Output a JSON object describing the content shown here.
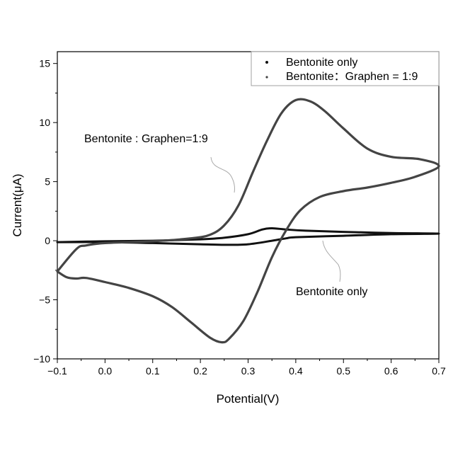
{
  "chart_data": {
    "type": "line",
    "title": "",
    "xlabel": "Potential(V)",
    "ylabel": "Current(μA)",
    "xlim": [
      -0.1,
      0.7
    ],
    "ylim": [
      -10,
      16
    ],
    "xticks": [
      "−0.1",
      "0.0",
      "0.1",
      "0.2",
      "0.3",
      "0.4",
      "0.5",
      "0.6",
      "0.7"
    ],
    "yticks": [
      "−10",
      "−5",
      "0",
      "5",
      "10",
      "15"
    ],
    "grid": false,
    "legend_position": "top-right",
    "series": [
      {
        "name": "Bentonite only",
        "color": "#111111",
        "points": [
          [
            -0.1,
            -0.12
          ],
          [
            0.0,
            -0.05
          ],
          [
            0.1,
            0.0
          ],
          [
            0.2,
            0.12
          ],
          [
            0.25,
            0.25
          ],
          [
            0.3,
            0.55
          ],
          [
            0.33,
            0.95
          ],
          [
            0.35,
            1.05
          ],
          [
            0.38,
            0.95
          ],
          [
            0.42,
            0.85
          ],
          [
            0.5,
            0.75
          ],
          [
            0.6,
            0.65
          ],
          [
            0.7,
            0.6
          ],
          [
            0.6,
            0.55
          ],
          [
            0.5,
            0.42
          ],
          [
            0.4,
            0.3
          ],
          [
            0.38,
            0.2
          ],
          [
            0.35,
            0.0
          ],
          [
            0.3,
            -0.3
          ],
          [
            0.25,
            -0.35
          ],
          [
            0.2,
            -0.3
          ],
          [
            0.1,
            -0.2
          ],
          [
            0.0,
            -0.12
          ],
          [
            -0.1,
            -0.12
          ]
        ]
      },
      {
        "name": "Bentonite : Graphen = 1:9",
        "color": "#444444",
        "points": [
          [
            -0.1,
            -2.6
          ],
          [
            -0.06,
            -0.7
          ],
          [
            -0.04,
            -0.4
          ],
          [
            0.0,
            -0.2
          ],
          [
            0.1,
            -0.05
          ],
          [
            0.18,
            0.2
          ],
          [
            0.22,
            0.5
          ],
          [
            0.25,
            1.3
          ],
          [
            0.28,
            3.0
          ],
          [
            0.31,
            5.8
          ],
          [
            0.34,
            8.5
          ],
          [
            0.37,
            10.8
          ],
          [
            0.4,
            11.9
          ],
          [
            0.43,
            11.8
          ],
          [
            0.46,
            11.0
          ],
          [
            0.5,
            9.5
          ],
          [
            0.55,
            7.8
          ],
          [
            0.6,
            7.1
          ],
          [
            0.66,
            6.9
          ],
          [
            0.7,
            6.3
          ],
          [
            0.65,
            5.4
          ],
          [
            0.6,
            4.9
          ],
          [
            0.55,
            4.5
          ],
          [
            0.5,
            4.2
          ],
          [
            0.45,
            3.7
          ],
          [
            0.41,
            2.6
          ],
          [
            0.38,
            0.9
          ],
          [
            0.35,
            -1.4
          ],
          [
            0.32,
            -4.3
          ],
          [
            0.29,
            -6.8
          ],
          [
            0.26,
            -8.3
          ],
          [
            0.245,
            -8.6
          ],
          [
            0.22,
            -8.2
          ],
          [
            0.18,
            -6.9
          ],
          [
            0.14,
            -5.6
          ],
          [
            0.1,
            -4.7
          ],
          [
            0.05,
            -4.0
          ],
          [
            0.0,
            -3.5
          ],
          [
            -0.04,
            -3.15
          ],
          [
            -0.06,
            -3.2
          ],
          [
            -0.08,
            -3.1
          ],
          [
            -0.1,
            -2.6
          ]
        ]
      }
    ],
    "legend": [
      {
        "label": "Bentonite only"
      },
      {
        "label": "Bentonite：Graphen = 1:9"
      }
    ],
    "annotations": [
      {
        "text": "Bentonite : Graphen=1:9"
      },
      {
        "text": "Bentonite only"
      }
    ]
  }
}
